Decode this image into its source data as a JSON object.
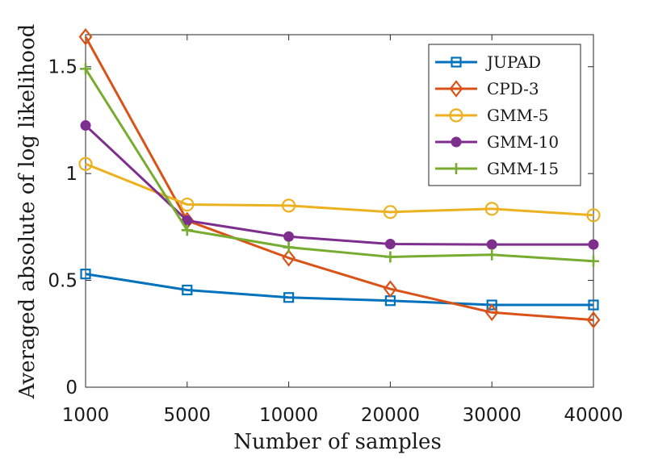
{
  "chart_data": {
    "type": "line",
    "title": "",
    "xlabel": "Number of samples",
    "ylabel": "Averaged absolute of log likelihood",
    "categories": [
      "1000",
      "5000",
      "10000",
      "20000",
      "30000",
      "40000"
    ],
    "yticks": [
      0,
      0.5,
      1,
      1.5
    ],
    "ytick_labels": [
      "0",
      "0.5",
      "1",
      "1.5"
    ],
    "ylim": [
      0,
      1.65
    ],
    "grid": false,
    "legend_position": "top-right",
    "series": [
      {
        "name": "JUPAD",
        "color": "#0072bd",
        "marker": "square",
        "values": [
          0.53,
          0.455,
          0.42,
          0.405,
          0.385,
          0.385
        ]
      },
      {
        "name": "CPD-3",
        "color": "#d95319",
        "marker": "diamond",
        "values": [
          1.64,
          0.78,
          0.605,
          0.46,
          0.35,
          0.315
        ]
      },
      {
        "name": "GMM-5",
        "color": "#edb120",
        "marker": "circle",
        "values": [
          1.045,
          0.855,
          0.85,
          0.82,
          0.835,
          0.805
        ]
      },
      {
        "name": "GMM-10",
        "color": "#7e2f8e",
        "marker": "dot",
        "values": [
          1.225,
          0.78,
          0.705,
          0.67,
          0.668,
          0.668
        ]
      },
      {
        "name": "GMM-15",
        "color": "#77ac30",
        "marker": "plus",
        "values": [
          1.49,
          0.735,
          0.655,
          0.61,
          0.62,
          0.59
        ]
      }
    ]
  }
}
